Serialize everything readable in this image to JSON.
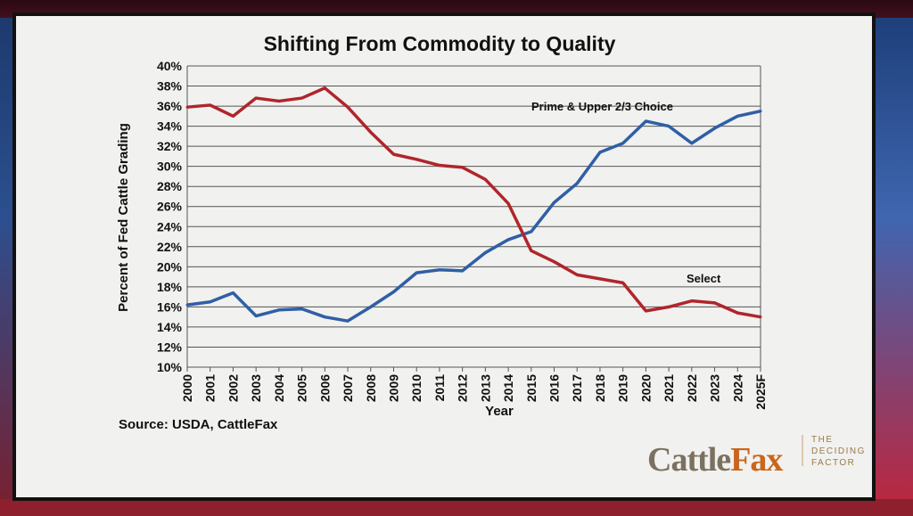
{
  "chart_data": {
    "type": "line",
    "title": "Shifting From Commodity to Quality",
    "xlabel": "Year",
    "ylabel": "Percent of Fed Cattle Grading",
    "categories": [
      "2000",
      "2001",
      "2002",
      "2003",
      "2004",
      "2005",
      "2006",
      "2007",
      "2008",
      "2009",
      "2010",
      "2011",
      "2012",
      "2013",
      "2014",
      "2015",
      "2016",
      "2017",
      "2018",
      "2019",
      "2020",
      "2021",
      "2022",
      "2023",
      "2024",
      "2025F"
    ],
    "ylim": [
      10,
      40
    ],
    "yticks": [
      "10%",
      "12%",
      "14%",
      "16%",
      "18%",
      "20%",
      "22%",
      "24%",
      "26%",
      "28%",
      "30%",
      "32%",
      "34%",
      "36%",
      "38%",
      "40%"
    ],
    "grid": true,
    "series": [
      {
        "name": "Prime & Upper 2/3 Choice",
        "color": "#2f5fa6",
        "values": [
          16.2,
          16.5,
          17.4,
          15.1,
          15.7,
          15.8,
          15.0,
          14.6,
          16.0,
          17.5,
          19.4,
          19.7,
          19.6,
          21.4,
          22.7,
          23.5,
          26.4,
          28.3,
          31.4,
          32.3,
          34.5,
          34.0,
          32.3,
          33.8,
          35.0,
          35.5
        ]
      },
      {
        "name": "Select",
        "color": "#b0252b",
        "values": [
          35.9,
          36.1,
          35.0,
          36.8,
          36.5,
          36.8,
          37.8,
          35.9,
          33.4,
          31.2,
          30.7,
          30.1,
          29.9,
          28.7,
          26.3,
          21.6,
          20.5,
          19.2,
          18.8,
          18.4,
          15.6,
          16.0,
          16.6,
          16.4,
          15.4,
          15.0
        ]
      }
    ],
    "annotations": [
      "Prime & Upper 2/3 Choice",
      "Select"
    ],
    "source": "Source: USDA, CattleFax"
  },
  "logo": {
    "brand_a": "Cattle",
    "brand_b": "Fax",
    "tagline_1": "THE",
    "tagline_2": "DECIDING",
    "tagline_3": "FACTOR",
    "color_a": "#7a7160",
    "color_b": "#c9651d"
  }
}
